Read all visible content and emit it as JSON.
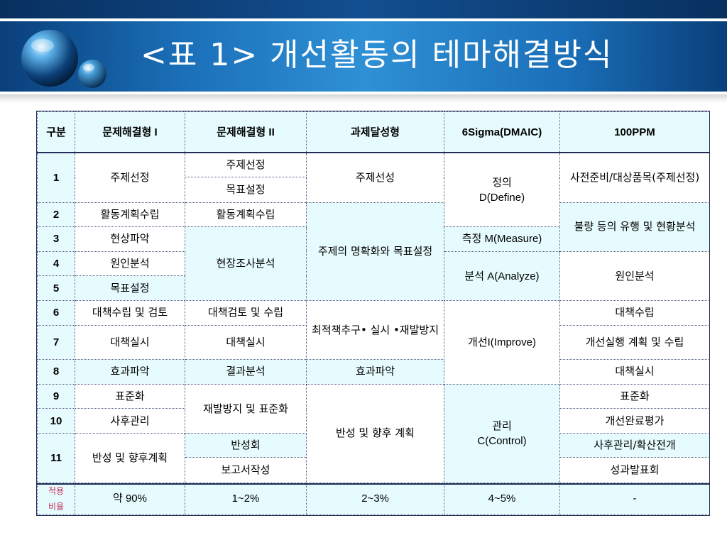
{
  "title": "<표 1> 개선활동의 테마해결방식",
  "colors": {
    "header_blue": "#1a6fb8",
    "cell_cyan": "#e6fbfd",
    "rate_label": "#c02f5c"
  },
  "table": {
    "head": {
      "gubun": "구분",
      "c1": "문제해결형 I",
      "c2": "문제해결형 II",
      "c3": "과제달성형",
      "c4": "6Sigma(DMAIC)",
      "c5": "100PPM"
    },
    "r1": {
      "num": "1",
      "c1": "주제선정",
      "c2a": "주제선정",
      "c2b": "목표설정",
      "c3": "주제선성",
      "c4_l1": "정의",
      "c4_l2": "D(Define)",
      "c5": "사전준비/대상품목(주제선정)"
    },
    "r2": {
      "num": "2",
      "c1": "활동계획수립",
      "c2": "활동계획수립",
      "c3": "주제의 명확화와 목표설정",
      "c5": "불량 등의 유행 및 현황분석"
    },
    "r3": {
      "num": "3",
      "c1": "현상파악",
      "c2": "현장조사분석",
      "c4": "측정 M(Measure)"
    },
    "r4": {
      "num": "4",
      "c1": "원인분석",
      "c4": "분석 A(Analyze)",
      "c5": "원인분석"
    },
    "r5": {
      "num": "5",
      "c1": "목표설정"
    },
    "r6": {
      "num": "6",
      "c1": "대책수립 및 검토",
      "c2": "대책검토 및 수립",
      "c3": "최적책추구• 실시 •재발방지",
      "c4": "개선I(Improve)",
      "c5": "대책수립"
    },
    "r7": {
      "num": "7",
      "c1": "대책실시",
      "c2": "대책실시",
      "c5": "개선실행 계획 및 수립"
    },
    "r8": {
      "num": "8",
      "c1": "효과파악",
      "c2": "결과분석",
      "c3": "효과파악",
      "c5": "대책실시"
    },
    "r9": {
      "num": "9",
      "c1": "표준화",
      "c2": "재발방지 및 표준화",
      "c3": "반성 및 향후 계획",
      "c4_l1": "관리",
      "c4_l2": "C(Control)",
      "c5": "표준화"
    },
    "r10": {
      "num": "10",
      "c1": "사후관리",
      "c5": "개선완료평가"
    },
    "r11": {
      "num": "11",
      "c1": "반성 및 향후계획",
      "c2a": "반성회",
      "c2b": "보고서작성",
      "c5a": "사후관리/확산전개",
      "c5b": "성과발표회"
    },
    "rate": {
      "label_l1": "적용",
      "label_l2": "비율",
      "c1": "약 90%",
      "c2": "1~2%",
      "c3": "2~3%",
      "c4": "4~5%",
      "c5": "-"
    }
  }
}
